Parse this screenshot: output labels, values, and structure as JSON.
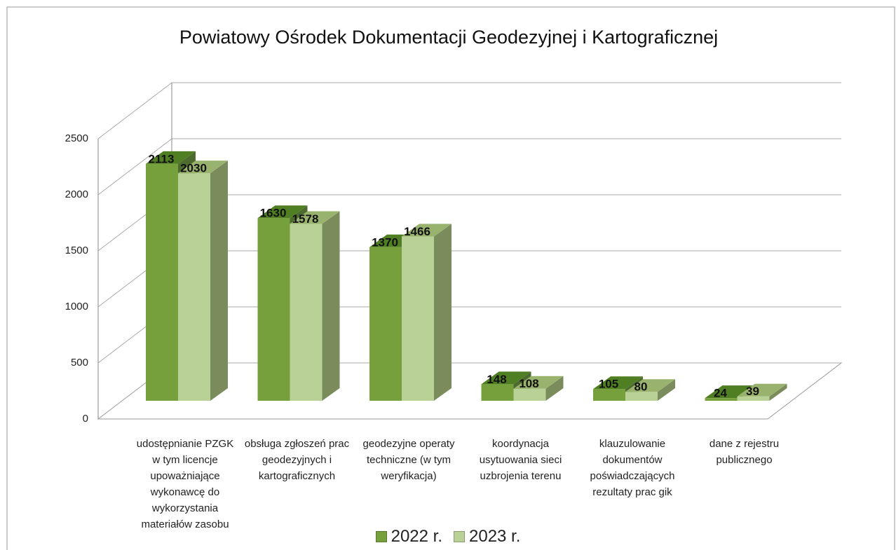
{
  "chart_data": {
    "type": "bar",
    "title": "Powiatowy Ośrodek Dokumentacji Geodezyjnej i Kartograficznej",
    "categories": [
      "udostępnianie PZGK w tym licencje upoważniające wykonawcę do wykorzystania materiałów zasobu",
      "obsługa zgłoszeń prac geodezyjnych i kartograficznych",
      "geodezyjne operaty techniczne (w tym weryfikacja)",
      "koordynacja usytuowania sieci uzbrojenia terenu",
      "klauzulowanie dokumentów poświadczających rezultaty prac gik",
      "dane z rejestru publicznego"
    ],
    "series": [
      {
        "name": "2022 r.",
        "color": "#76a03c",
        "values": [
          2113,
          1630,
          1370,
          148,
          105,
          24
        ]
      },
      {
        "name": "2023 r.",
        "color": "#b9d196",
        "values": [
          2030,
          1578,
          1466,
          108,
          80,
          39
        ]
      }
    ],
    "ylim": [
      0,
      2500
    ],
    "yticks": [
      0,
      500,
      1000,
      1500,
      2000,
      2500
    ],
    "grid": true,
    "legend": "bottom"
  }
}
